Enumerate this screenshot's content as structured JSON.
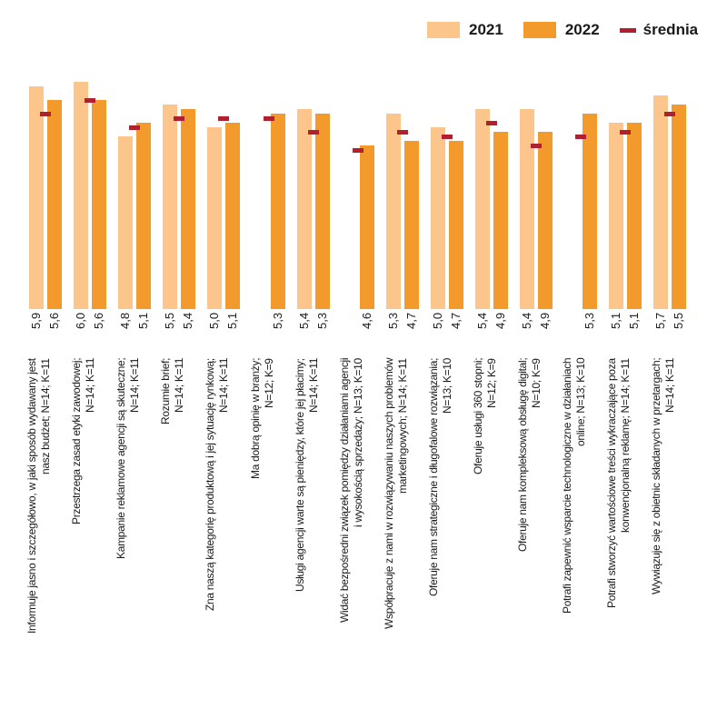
{
  "chart_data": {
    "type": "bar",
    "title": "",
    "xlabel": "",
    "ylabel": "",
    "ylim": [
      1,
      7
    ],
    "grid": false,
    "legend_position": "top-right",
    "legend": [
      "2021",
      "2022",
      "średnia"
    ],
    "colors": {
      "2021": "#fbc58c",
      "2022": "#f39a2c",
      "średnia": "#b0202e"
    },
    "categories": [
      {
        "lines": [
          "Informuje jasno i szczegółowo, w jaki sposób wydawany jest",
          "nasz budżet; N=14; K=11"
        ]
      },
      {
        "lines": [
          "Przestrzega zasad etyki zawodowej;",
          "N=14; K=11"
        ]
      },
      {
        "lines": [
          "Kampanie reklamowe agencji są skuteczne;",
          "N=14; K=11"
        ]
      },
      {
        "lines": [
          "Rozumie brief;",
          "N=14; K=11"
        ]
      },
      {
        "lines": [
          "Zna naszą kategorię produktową i jej sytuację rynkową;",
          "N=14; K=11"
        ]
      },
      {
        "lines": [
          "Ma dobrą opinię w branży;",
          "N=12; K=9"
        ]
      },
      {
        "lines": [
          "Usługi agencji warte są pieniędzy, które jej płacimy;",
          "N=14; K=11"
        ]
      },
      {
        "lines": [
          "Widać bezpośredni związek pomiędzy działaniami agencji",
          "i wysokością sprzedaży; N=13; K=10"
        ]
      },
      {
        "lines": [
          "Współpracuje z nami w rozwiązywaniu naszych problemów",
          "marketingowych; N=14; K=11"
        ]
      },
      {
        "lines": [
          "Oferuje nam strategiczne i długofalowe rozwiązania;",
          "N=13; K=10"
        ]
      },
      {
        "lines": [
          "Oferuje usługi 360 stopni;",
          "N=12; K=9"
        ]
      },
      {
        "lines": [
          "Oferuje nam kompleksową obsługę digital;",
          "N=10; K=9"
        ]
      },
      {
        "lines": [
          "Potrafi zapewnić wsparcie technologiczne w działaniach",
          "online; N=13; K=10"
        ]
      },
      {
        "lines": [
          "Potrafi stworzyć wartościowe treści wykraczające poza",
          "konwencjonalną reklamę; N=14; K=11"
        ]
      },
      {
        "lines": [
          "Wywiązuje się z obietnic składanych w przetargach;",
          "N=14; K=11"
        ]
      }
    ],
    "series": [
      {
        "name": "2021",
        "values": [
          5.9,
          6.0,
          4.8,
          5.5,
          5.0,
          null,
          5.4,
          null,
          5.3,
          5.0,
          5.4,
          5.4,
          null,
          5.1,
          5.7
        ],
        "labels": [
          "5,9",
          "6,0",
          "4,8",
          "5,5",
          "5,0",
          null,
          "5,4",
          null,
          "5,3",
          "5,0",
          "5,4",
          "5,4",
          null,
          "5,1",
          "5,7"
        ]
      },
      {
        "name": "2022",
        "values": [
          5.6,
          5.6,
          5.1,
          5.4,
          5.1,
          5.3,
          5.3,
          4.6,
          4.7,
          4.7,
          4.9,
          4.9,
          5.3,
          5.1,
          5.5
        ],
        "labels": [
          "5,6",
          "5,6",
          "5,1",
          "5,4",
          "5,1",
          "5,3",
          "5,3",
          "4,6",
          "4,7",
          "4,7",
          "4,9",
          "4,9",
          "5,3",
          "5,1",
          "5,5"
        ]
      },
      {
        "name": "średnia",
        "values": [
          5.3,
          5.6,
          5.0,
          5.2,
          5.2,
          5.2,
          4.9,
          4.5,
          4.9,
          4.8,
          5.1,
          4.6,
          4.8,
          4.9,
          5.3
        ]
      }
    ]
  }
}
